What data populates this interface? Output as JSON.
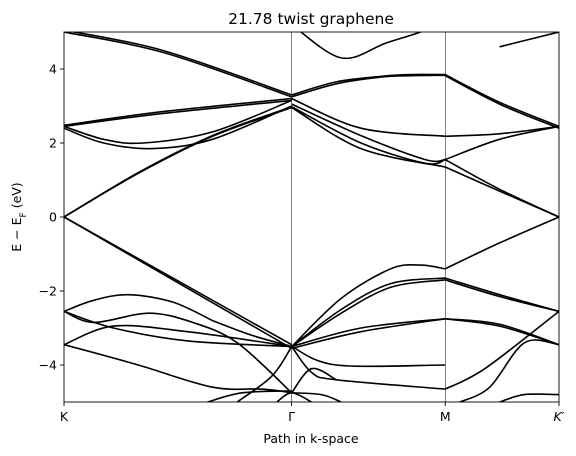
{
  "chart_data": {
    "type": "line",
    "title": "21.78 twist graphene",
    "xlabel": "Path in k-space",
    "ylabel": "E − E_F (eV)",
    "ylim": [
      -5,
      5
    ],
    "yticks": [
      -4,
      -2,
      0,
      2,
      4
    ],
    "ytick_labels": [
      "−4",
      "−2",
      "0",
      "2",
      "4"
    ],
    "xlim": [
      0,
      1
    ],
    "kpoints": [
      {
        "label": "K",
        "x": 0.0
      },
      {
        "label": "Γ",
        "x": 0.4597
      },
      {
        "label": "M",
        "x": 0.7702
      },
      {
        "label": "K′",
        "x": 1.0
      }
    ],
    "line_color": "#000000",
    "series": [
      {
        "x": [
          0,
          0.46
        ],
        "y": [
          0.0,
          -3.45
        ]
      },
      {
        "x": [
          0,
          0.46
        ],
        "y": [
          0.0,
          -3.55
        ]
      },
      {
        "x": [
          0,
          0.15,
          0.3,
          0.46
        ],
        "y": [
          0.0,
          1.2,
          2.2,
          2.98
        ]
      },
      {
        "x": [
          0,
          0.15,
          0.3,
          0.46
        ],
        "y": [
          0.0,
          1.18,
          2.18,
          2.96
        ]
      },
      {
        "x": [
          0,
          0.2,
          0.46
        ],
        "y": [
          5.05,
          4.5,
          3.3
        ]
      },
      {
        "x": [
          0,
          0.2,
          0.46
        ],
        "y": [
          5.0,
          4.45,
          3.25
        ]
      },
      {
        "x": [
          0,
          0.2,
          0.46
        ],
        "y": [
          2.48,
          2.85,
          3.2
        ]
      },
      {
        "x": [
          0,
          0.2,
          0.46
        ],
        "y": [
          2.45,
          2.8,
          3.15
        ]
      },
      {
        "x": [
          0,
          0.08,
          0.16,
          0.3,
          0.46
        ],
        "y": [
          2.45,
          2.1,
          2.0,
          2.3,
          3.15
        ]
      },
      {
        "x": [
          0,
          0.08,
          0.18,
          0.3,
          0.46
        ],
        "y": [
          2.4,
          2.0,
          1.85,
          2.1,
          3.0
        ]
      },
      {
        "x": [
          0,
          0.06,
          0.13,
          0.22,
          0.3
        ],
        "y": [
          -2.55,
          -2.25,
          -2.1,
          -2.3,
          -2.8
        ]
      },
      {
        "x": [
          0.3,
          0.38,
          0.46
        ],
        "y": [
          -2.8,
          -3.2,
          -3.5
        ]
      },
      {
        "x": [
          0,
          0.06,
          0.17,
          0.26,
          0.35,
          0.46
        ],
        "y": [
          -2.55,
          -2.85,
          -2.6,
          -2.85,
          -3.4,
          -4.75
        ]
      },
      {
        "x": [
          0,
          0.1,
          0.25,
          0.46
        ],
        "y": [
          -2.55,
          -3.0,
          -3.35,
          -3.5
        ]
      },
      {
        "x": [
          0,
          0.1,
          0.25,
          0.46
        ],
        "y": [
          -3.45,
          -2.95,
          -3.1,
          -3.5
        ]
      },
      {
        "x": [
          0,
          0.15,
          0.3,
          0.4,
          0.46
        ],
        "y": [
          -3.45,
          -4.0,
          -4.6,
          -4.65,
          -4.75
        ]
      },
      {
        "x": [
          0.29,
          0.36,
          0.46
        ],
        "y": [
          -5.0,
          -4.75,
          -4.7
        ]
      },
      {
        "x": [
          0.35,
          0.42,
          0.46
        ],
        "y": [
          -5.0,
          -4.3,
          -3.5
        ]
      },
      {
        "x": [
          0.46,
          0.55,
          0.64,
          0.7,
          0.77
        ],
        "y": [
          3.3,
          3.65,
          3.8,
          3.85,
          3.85
        ]
      },
      {
        "x": [
          0.46,
          0.55,
          0.64,
          0.7,
          0.77
        ],
        "y": [
          3.25,
          3.6,
          3.78,
          3.82,
          3.83
        ]
      },
      {
        "x": [
          0.46,
          0.6,
          0.77
        ],
        "y": [
          3.2,
          2.4,
          2.18
        ]
      },
      {
        "x": [
          0.46,
          0.6,
          0.73,
          0.77
        ],
        "y": [
          3.05,
          2.2,
          1.55,
          1.55
        ]
      },
      {
        "x": [
          0.46,
          0.6,
          0.73,
          0.77
        ],
        "y": [
          2.98,
          2.0,
          1.45,
          1.55
        ]
      },
      {
        "x": [
          0.46,
          0.6,
          0.77
        ],
        "y": [
          2.96,
          1.85,
          1.35
        ]
      },
      {
        "x": [
          0.46,
          0.56,
          0.65,
          0.72,
          0.77
        ],
        "y": [
          5.2,
          4.3,
          4.7,
          5.0,
          5.3
        ]
      },
      {
        "x": [
          0.46,
          0.56,
          0.66,
          0.72,
          0.77
        ],
        "y": [
          -3.5,
          -2.2,
          -1.4,
          -1.3,
          -1.4
        ]
      },
      {
        "x": [
          0.46,
          0.56,
          0.66,
          0.77
        ],
        "y": [
          -3.5,
          -2.5,
          -1.8,
          -1.65
        ]
      },
      {
        "x": [
          0.46,
          0.56,
          0.66,
          0.77
        ],
        "y": [
          -3.5,
          -2.6,
          -1.9,
          -1.7
        ]
      },
      {
        "x": [
          0.46,
          0.6,
          0.77
        ],
        "y": [
          -3.5,
          -3.0,
          -2.75
        ]
      },
      {
        "x": [
          0.46,
          0.6,
          0.77
        ],
        "y": [
          -3.55,
          -3.1,
          -2.75
        ]
      },
      {
        "x": [
          0.46,
          0.5,
          0.55,
          0.77
        ],
        "y": [
          -3.5,
          -4.2,
          -4.4,
          -4.65
        ]
      },
      {
        "x": [
          0.46,
          0.55,
          0.77
        ],
        "y": [
          -3.5,
          -4.0,
          -4.0
        ]
      },
      {
        "x": [
          0.46,
          0.5,
          0.55
        ],
        "y": [
          -4.75,
          -4.1,
          -4.4
        ]
      },
      {
        "x": [
          0.46,
          0.52,
          0.56
        ],
        "y": [
          -4.75,
          -4.8,
          -5.0
        ]
      },
      {
        "x": [
          0.43,
          0.46,
          0.5
        ],
        "y": [
          -5.0,
          -4.75,
          -5.0
        ]
      },
      {
        "x": [
          0.77,
          0.88,
          1.0
        ],
        "y": [
          3.85,
          3.1,
          2.45
        ]
      },
      {
        "x": [
          0.77,
          0.88,
          1.0
        ],
        "y": [
          3.82,
          3.05,
          2.4
        ]
      },
      {
        "x": [
          0.77,
          0.88,
          1.0
        ],
        "y": [
          2.18,
          2.25,
          2.45
        ]
      },
      {
        "x": [
          0.77,
          0.88,
          1.0
        ],
        "y": [
          1.55,
          2.1,
          2.45
        ]
      },
      {
        "x": [
          0.77,
          0.88,
          1.0
        ],
        "y": [
          1.35,
          0.7,
          0.0
        ]
      },
      {
        "x": [
          0.77,
          0.88,
          1.0
        ],
        "y": [
          1.55,
          0.75,
          0.0
        ]
      },
      {
        "x": [
          0.88,
          1.0
        ],
        "y": [
          4.6,
          5.0
        ]
      },
      {
        "x": [
          0.77,
          0.88,
          1.0
        ],
        "y": [
          -1.4,
          -0.7,
          0.0
        ]
      },
      {
        "x": [
          0.77,
          0.88,
          1.0
        ],
        "y": [
          -1.65,
          -2.1,
          -2.55
        ]
      },
      {
        "x": [
          0.77,
          0.88,
          1.0
        ],
        "y": [
          -1.7,
          -2.15,
          -2.55
        ]
      },
      {
        "x": [
          0.77,
          0.88,
          1.0
        ],
        "y": [
          -2.75,
          -2.95,
          -3.45
        ]
      },
      {
        "x": [
          0.77,
          0.88,
          1.0
        ],
        "y": [
          -2.75,
          -2.9,
          -3.45
        ]
      },
      {
        "x": [
          0.77,
          0.85,
          1.0
        ],
        "y": [
          -4.65,
          -4.1,
          -2.55
        ]
      },
      {
        "x": [
          0.8,
          0.86,
          0.93,
          1.0
        ],
        "y": [
          -5.0,
          -4.6,
          -3.4,
          -3.45
        ]
      },
      {
        "x": [
          0.88,
          0.93,
          1.0
        ],
        "y": [
          -5.0,
          -4.8,
          -4.8
        ]
      }
    ]
  }
}
